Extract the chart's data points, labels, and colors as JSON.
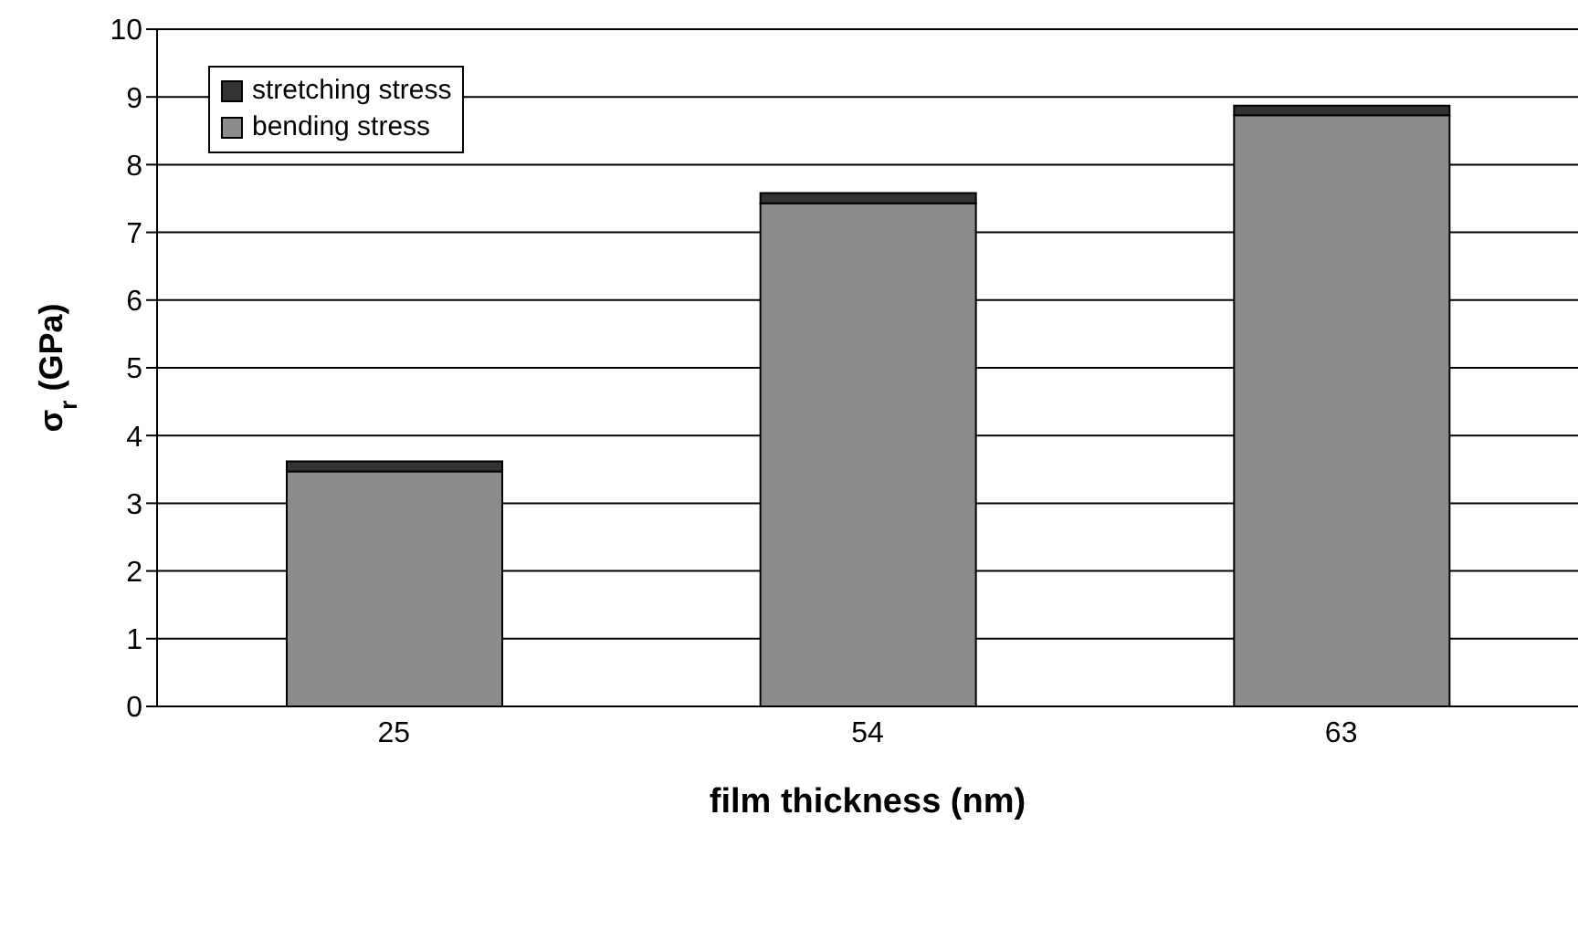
{
  "chart_data": {
    "type": "bar",
    "stacked": true,
    "xlabel": "film thickness (nm)",
    "ylabel": "σ$_{r}$ (GPa)",
    "categories": [
      "25",
      "54",
      "63"
    ],
    "series": [
      {
        "name": "bending stress",
        "color": "#8c8c8c",
        "values": [
          3.47,
          7.43,
          8.73
        ]
      },
      {
        "name": "stretching stress",
        "color": "#333333",
        "values": [
          0.15,
          0.15,
          0.14
        ]
      }
    ],
    "ylim": [
      0,
      10
    ],
    "yticks": [
      0,
      1,
      2,
      3,
      4,
      5,
      6,
      7,
      8,
      9,
      10
    ],
    "grid": "y",
    "legend": "top left"
  }
}
